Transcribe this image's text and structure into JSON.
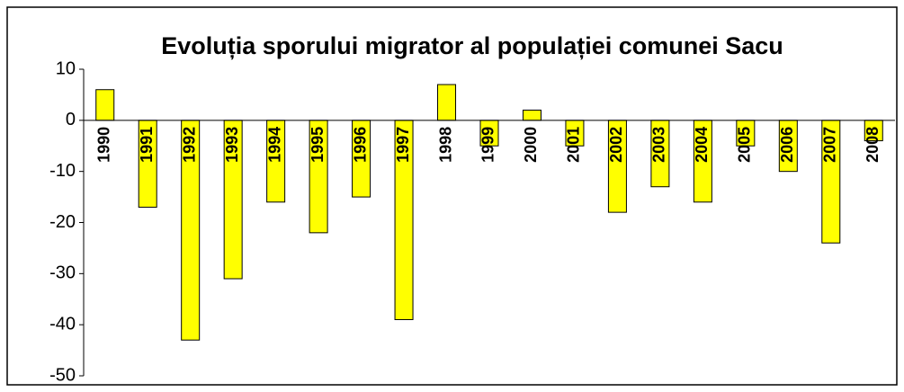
{
  "chart_data": {
    "type": "bar",
    "title": "Evoluția sporului migrator al populației comunei Sacu",
    "categories": [
      "1990",
      "1991",
      "1992",
      "1993",
      "1994",
      "1995",
      "1996",
      "1997",
      "1998",
      "1999",
      "2000",
      "2001",
      "2002",
      "2003",
      "2004",
      "2005",
      "2006",
      "2007",
      "2008"
    ],
    "values": [
      6,
      -17,
      -43,
      -31,
      -16,
      -22,
      -15,
      -39,
      7,
      -5,
      2,
      -5,
      -18,
      -13,
      -16,
      -5,
      -10,
      -24,
      -4
    ],
    "color": "#ffff00",
    "ylim": [
      -50,
      10
    ],
    "yticks": [
      -50,
      -40,
      -30,
      -20,
      -10,
      0,
      10
    ],
    "grid": false
  }
}
